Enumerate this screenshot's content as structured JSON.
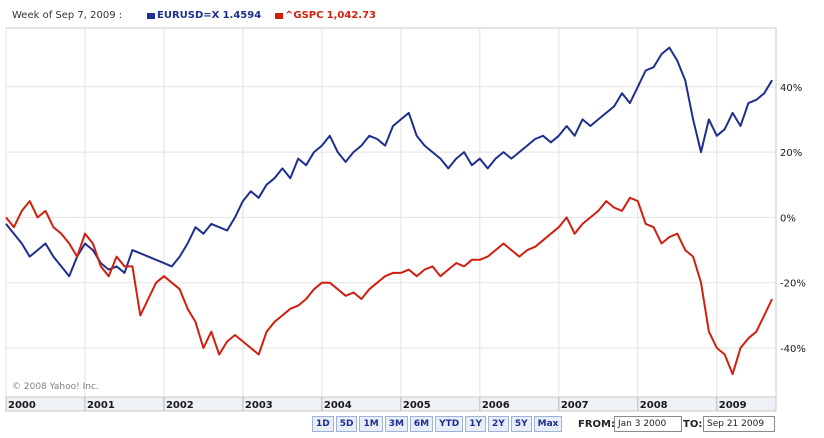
{
  "header": {
    "week_label": "Week of Sep 7, 2009 :",
    "legend": [
      {
        "name": "EURUSD=X",
        "value": "1.4594",
        "color": "#1f2f8f"
      },
      {
        "name": "^GSPC",
        "value": "1,042.73",
        "color": "#d11f0f"
      }
    ]
  },
  "copyright": "© 2008 Yahoo! Inc.",
  "range_buttons": [
    "1D",
    "5D",
    "1M",
    "3M",
    "6M",
    "YTD",
    "1Y",
    "2Y",
    "5Y",
    "Max"
  ],
  "date_range": {
    "from_label": "FROM:",
    "from_value": "Jan 3 2000",
    "to_label": "TO:",
    "to_value": "Sep 21 2009"
  },
  "chart_data": {
    "type": "line",
    "x_axis": {
      "ticks": [
        "2000",
        "2001",
        "2002",
        "2003",
        "2004",
        "2005",
        "2006",
        "2007",
        "2008",
        "2009"
      ],
      "range": [
        2000.0,
        2009.75
      ]
    },
    "y_axis": {
      "ticks": [
        40,
        20,
        0,
        -20,
        -40
      ],
      "tick_labels": [
        "40%",
        "20%",
        "0%",
        "-20%",
        "-40%"
      ],
      "range": [
        -55,
        58
      ],
      "position": "right"
    },
    "grid": true,
    "series": [
      {
        "name": "EURUSD=X",
        "color": "#1f2f8f",
        "x": [
          2000.0,
          2000.1,
          2000.2,
          2000.3,
          2000.4,
          2000.5,
          2000.6,
          2000.7,
          2000.8,
          2000.9,
          2001.0,
          2001.1,
          2001.2,
          2001.3,
          2001.4,
          2001.5,
          2001.6,
          2001.7,
          2001.8,
          2001.9,
          2002.0,
          2002.1,
          2002.2,
          2002.3,
          2002.4,
          2002.5,
          2002.6,
          2002.7,
          2002.8,
          2002.9,
          2003.0,
          2003.1,
          2003.2,
          2003.3,
          2003.4,
          2003.5,
          2003.6,
          2003.7,
          2003.8,
          2003.9,
          2004.0,
          2004.1,
          2004.2,
          2004.3,
          2004.4,
          2004.5,
          2004.6,
          2004.7,
          2004.8,
          2004.9,
          2005.0,
          2005.1,
          2005.2,
          2005.3,
          2005.4,
          2005.5,
          2005.6,
          2005.7,
          2005.8,
          2005.9,
          2006.0,
          2006.1,
          2006.2,
          2006.3,
          2006.4,
          2006.5,
          2006.6,
          2006.7,
          2006.8,
          2006.9,
          2007.0,
          2007.1,
          2007.2,
          2007.3,
          2007.4,
          2007.5,
          2007.6,
          2007.7,
          2007.8,
          2007.9,
          2008.0,
          2008.1,
          2008.2,
          2008.3,
          2008.4,
          2008.5,
          2008.6,
          2008.7,
          2008.8,
          2008.9,
          2009.0,
          2009.1,
          2009.2,
          2009.3,
          2009.4,
          2009.5,
          2009.6,
          2009.7
        ],
        "y": [
          -2,
          -5,
          -8,
          -12,
          -10,
          -8,
          -12,
          -15,
          -18,
          -12,
          -8,
          -10,
          -14,
          -16,
          -15,
          -17,
          -10,
          -11,
          -12,
          -13,
          -14,
          -15,
          -12,
          -8,
          -3,
          -5,
          -2,
          -3,
          -4,
          0,
          5,
          8,
          6,
          10,
          12,
          15,
          12,
          18,
          16,
          20,
          22,
          25,
          20,
          17,
          20,
          22,
          25,
          24,
          22,
          28,
          30,
          32,
          25,
          22,
          20,
          18,
          15,
          18,
          20,
          16,
          18,
          15,
          18,
          20,
          18,
          20,
          22,
          24,
          25,
          23,
          25,
          28,
          25,
          30,
          28,
          30,
          32,
          34,
          38,
          35,
          40,
          45,
          46,
          50,
          52,
          48,
          42,
          30,
          20,
          30,
          25,
          27,
          32,
          28,
          35,
          36,
          38,
          42
        ]
      },
      {
        "name": "^GSPC",
        "color": "#d11f0f",
        "x": [
          2000.0,
          2000.1,
          2000.2,
          2000.3,
          2000.4,
          2000.5,
          2000.6,
          2000.7,
          2000.8,
          2000.9,
          2001.0,
          2001.1,
          2001.2,
          2001.3,
          2001.4,
          2001.5,
          2001.6,
          2001.7,
          2001.8,
          2001.9,
          2002.0,
          2002.1,
          2002.2,
          2002.3,
          2002.4,
          2002.5,
          2002.6,
          2002.7,
          2002.8,
          2002.9,
          2003.0,
          2003.1,
          2003.2,
          2003.3,
          2003.4,
          2003.5,
          2003.6,
          2003.7,
          2003.8,
          2003.9,
          2004.0,
          2004.1,
          2004.2,
          2004.3,
          2004.4,
          2004.5,
          2004.6,
          2004.7,
          2004.8,
          2004.9,
          2005.0,
          2005.1,
          2005.2,
          2005.3,
          2005.4,
          2005.5,
          2005.6,
          2005.7,
          2005.8,
          2005.9,
          2006.0,
          2006.1,
          2006.2,
          2006.3,
          2006.4,
          2006.5,
          2006.6,
          2006.7,
          2006.8,
          2006.9,
          2007.0,
          2007.1,
          2007.2,
          2007.3,
          2007.4,
          2007.5,
          2007.6,
          2007.7,
          2007.8,
          2007.9,
          2008.0,
          2008.1,
          2008.2,
          2008.3,
          2008.4,
          2008.5,
          2008.6,
          2008.7,
          2008.8,
          2008.9,
          2009.0,
          2009.1,
          2009.2,
          2009.3,
          2009.4,
          2009.5,
          2009.6,
          2009.7
        ],
        "y": [
          0,
          -3,
          2,
          5,
          0,
          2,
          -3,
          -5,
          -8,
          -12,
          -5,
          -8,
          -15,
          -18,
          -12,
          -15,
          -15,
          -30,
          -25,
          -20,
          -18,
          -20,
          -22,
          -28,
          -32,
          -40,
          -35,
          -42,
          -38,
          -36,
          -38,
          -40,
          -42,
          -35,
          -32,
          -30,
          -28,
          -27,
          -25,
          -22,
          -20,
          -20,
          -22,
          -24,
          -23,
          -25,
          -22,
          -20,
          -18,
          -17,
          -17,
          -16,
          -18,
          -16,
          -15,
          -18,
          -16,
          -14,
          -15,
          -13,
          -13,
          -12,
          -10,
          -8,
          -10,
          -12,
          -10,
          -9,
          -7,
          -5,
          -3,
          0,
          -5,
          -2,
          0,
          2,
          5,
          3,
          2,
          6,
          5,
          -2,
          -3,
          -8,
          -6,
          -5,
          -10,
          -12,
          -20,
          -35,
          -40,
          -42,
          -48,
          -40,
          -37,
          -35,
          -30,
          -25
        ]
      }
    ]
  }
}
